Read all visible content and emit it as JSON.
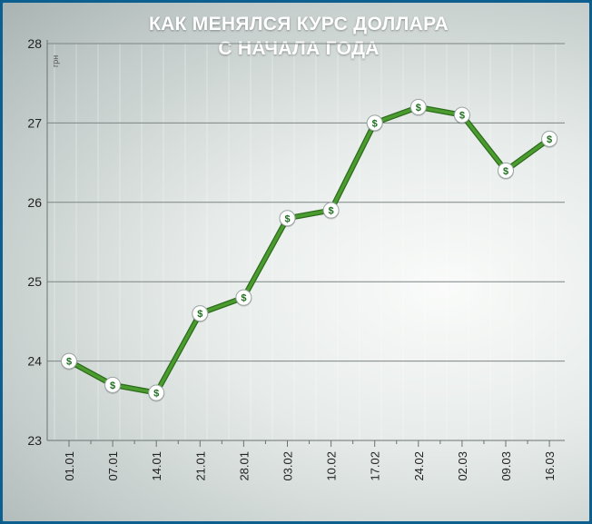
{
  "title_line1": "КАК МЕНЯЛСЯ КУРС ДОЛЛАРА",
  "title_line2": "С НАЧАЛА ГОДА",
  "colors": {
    "frame": "#0d5f8f",
    "line": "#4a9c2e",
    "line_dark": "#2d6b1c",
    "marker_text": "#1f6e1f"
  },
  "marker_icon": "dollar-sign-icon",
  "chart_data": {
    "type": "line",
    "title": "КАК МЕНЯЛСЯ КУРС ДОЛЛАРА С НАЧАЛА ГОДА",
    "ylabel": "грн",
    "xlabel": "",
    "ylim": [
      23,
      28
    ],
    "yticks": [
      23,
      24,
      25,
      26,
      27,
      28
    ],
    "categories": [
      "01.01",
      "07.01",
      "14.01",
      "21.01",
      "28.01",
      "03.02",
      "10.02",
      "17.02",
      "24.02",
      "02.03",
      "09.03",
      "16.03"
    ],
    "x_points": [
      0,
      1,
      2,
      3,
      4,
      5,
      6,
      7,
      8,
      9,
      10,
      11
    ],
    "x": [
      "01.01",
      "",
      "07.01",
      "",
      "14.01",
      "",
      "21.01",
      "",
      "28.01",
      "",
      "03.02",
      "",
      "10.02",
      "",
      "17.02",
      "",
      "24.02",
      "",
      "02.03",
      "",
      "09.03",
      "",
      "16.03"
    ],
    "values": [
      24.0,
      23.7,
      23.6,
      24.6,
      24.8,
      25.8,
      25.9,
      27.0,
      27.2,
      27.1,
      26.4,
      26.8
    ],
    "marker_label": "$",
    "grid": true,
    "legend": "none"
  }
}
